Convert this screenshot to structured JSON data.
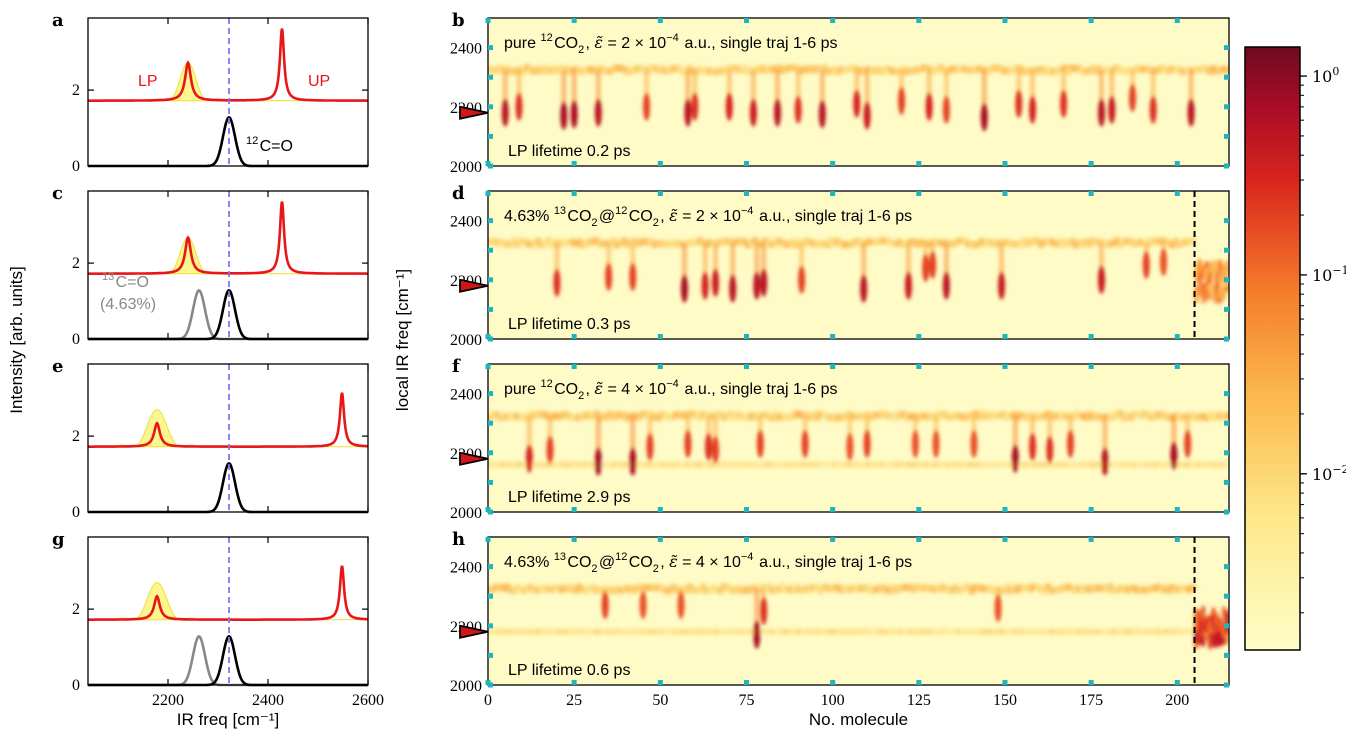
{
  "colors": {
    "lp": "#e8161a",
    "up": "#e8161a",
    "cavity_fill": "#fbf68e",
    "cavity_line": "#f2dd3c",
    "c12": "#000000",
    "c13": "#888888",
    "dashed": "#7b78f2",
    "heatmap_bg": "#fefbc6",
    "tick_cyan": "#1bb6be",
    "marker": "#d11616"
  },
  "chart_data": [
    {
      "panel": "a",
      "type": "line",
      "xlabel": "",
      "ylabel": "",
      "xlim": [
        2040,
        2600
      ],
      "ylim": [
        0,
        3.9
      ],
      "yticks": [
        0,
        2
      ],
      "xticks": [
        2200,
        2400,
        2600
      ],
      "dashed_line_x": 2322,
      "labels": {
        "lp": "LP",
        "up": "UP",
        "c12": "12C=O"
      },
      "lp": {
        "x": 2240,
        "h": 1.0,
        "w": 7
      },
      "up": {
        "x": 2428,
        "h": 1.9,
        "w": 5
      },
      "cavity": {
        "center": 2240,
        "h": 1.0,
        "w": 40
      },
      "baseline": 1.72,
      "c12": {
        "x": 2322,
        "h": 1.28,
        "w": 12
      },
      "c13": null
    },
    {
      "panel": "c",
      "type": "line",
      "xlim": [
        2040,
        2600
      ],
      "ylim": [
        0,
        3.9
      ],
      "yticks": [
        0,
        2
      ],
      "xticks": [
        2200,
        2400,
        2600
      ],
      "dashed_line_x": 2322,
      "labels": {
        "c13": "13C=O",
        "c13_pct": "(4.63%)"
      },
      "lp": {
        "x": 2240,
        "h": 0.95,
        "w": 7
      },
      "up": {
        "x": 2428,
        "h": 1.9,
        "w": 5
      },
      "cavity": {
        "center": 2240,
        "h": 0.95,
        "w": 40
      },
      "baseline": 1.72,
      "c12": {
        "x": 2322,
        "h": 1.28,
        "w": 12
      },
      "c13": {
        "x": 2262,
        "h": 1.28,
        "w": 12
      }
    },
    {
      "panel": "e",
      "type": "line",
      "xlim": [
        2040,
        2600
      ],
      "ylim": [
        0,
        3.9
      ],
      "yticks": [
        0,
        2
      ],
      "xticks": [
        2200,
        2400,
        2600
      ],
      "dashed_line_x": 2322,
      "lp": {
        "x": 2178,
        "h": 0.62,
        "w": 7
      },
      "up": {
        "x": 2548,
        "h": 1.42,
        "w": 5
      },
      "cavity": {
        "center": 2178,
        "h": 0.98,
        "w": 48
      },
      "baseline": 1.72,
      "c12": {
        "x": 2322,
        "h": 1.28,
        "w": 12
      },
      "c13": null
    },
    {
      "panel": "g",
      "type": "line",
      "xlabel": "IR freq [cm⁻¹]",
      "xlim": [
        2040,
        2600
      ],
      "ylim": [
        0,
        3.9
      ],
      "yticks": [
        0,
        2
      ],
      "xticks": [
        2200,
        2400,
        2600
      ],
      "xticklabels": [
        "2200",
        "2400",
        "2600"
      ],
      "dashed_line_x": 2322,
      "lp": {
        "x": 2178,
        "h": 0.62,
        "w": 7
      },
      "up": {
        "x": 2548,
        "h": 1.42,
        "w": 5
      },
      "cavity": {
        "center": 2178,
        "h": 0.98,
        "w": 48
      },
      "baseline": 1.72,
      "c12": {
        "x": 2322,
        "h": 1.28,
        "w": 12
      },
      "c13": {
        "x": 2262,
        "h": 1.28,
        "w": 12
      }
    },
    {
      "panel": "b",
      "type": "heatmap",
      "title_parts": {
        "a": "pure ",
        "sup1": "12",
        "b": "CO",
        "sub1": "2",
        "c": ", ",
        "eps": "ε̃",
        "d": " = 2 × 10",
        "exp": "−4",
        "e": " a.u., single traj 1-6 ps"
      },
      "lifetime": "LP lifetime 0.2 ps",
      "xlim": [
        0,
        215
      ],
      "ylim": [
        2000,
        2500
      ],
      "yticks": [
        2000,
        2200,
        2400
      ],
      "marker_y": 2180,
      "main_band_y": 2325,
      "secondary_band_y": null,
      "dashed_x": null,
      "dips": [
        [
          5,
          2180,
          0.9
        ],
        [
          9,
          2200,
          0.6
        ],
        [
          22,
          2170,
          1.0
        ],
        [
          25,
          2175,
          1.0
        ],
        [
          32,
          2180,
          0.9
        ],
        [
          46,
          2200,
          0.5
        ],
        [
          58,
          2180,
          0.9
        ],
        [
          60,
          2200,
          0.6
        ],
        [
          70,
          2200,
          0.7
        ],
        [
          77,
          2180,
          0.8
        ],
        [
          84,
          2180,
          0.9
        ],
        [
          90,
          2190,
          0.6
        ],
        [
          97,
          2175,
          0.9
        ],
        [
          107,
          2210,
          0.7
        ],
        [
          110,
          2170,
          0.8
        ],
        [
          120,
          2220,
          0.5
        ],
        [
          128,
          2200,
          0.7
        ],
        [
          133,
          2190,
          0.5
        ],
        [
          144,
          2165,
          1.0
        ],
        [
          154,
          2210,
          0.6
        ],
        [
          158,
          2190,
          0.7
        ],
        [
          167,
          2210,
          0.6
        ],
        [
          178,
          2180,
          0.9
        ],
        [
          181,
          2190,
          0.8
        ],
        [
          187,
          2230,
          0.5
        ],
        [
          193,
          2190,
          0.6
        ],
        [
          204,
          2180,
          0.9
        ]
      ]
    },
    {
      "panel": "d",
      "type": "heatmap",
      "title_parts": {
        "a": "4.63% ",
        "sup1": "13",
        "b": "CO",
        "sub1": "2",
        "c": "@",
        "sup2": "12",
        "b2": "CO",
        "sub2": "2",
        "c2": ", ",
        "eps": "ε̃",
        "d": " = 2 × 10",
        "exp": "−4",
        "e": " a.u., single traj 1-6 ps"
      },
      "lifetime": "LP lifetime 0.3 ps",
      "xlim": [
        0,
        215
      ],
      "ylim": [
        2000,
        2500
      ],
      "yticks": [
        2000,
        2200,
        2400
      ],
      "marker_y": 2180,
      "main_band_y": 2325,
      "secondary_band_y": null,
      "dashed_x": 205,
      "dips": [
        [
          20,
          2190,
          0.6
        ],
        [
          35,
          2210,
          0.5
        ],
        [
          42,
          2210,
          0.5
        ],
        [
          57,
          2170,
          1.0
        ],
        [
          63,
          2180,
          0.7
        ],
        [
          66,
          2190,
          0.8
        ],
        [
          71,
          2170,
          0.9
        ],
        [
          78,
          2180,
          0.9
        ],
        [
          80,
          2190,
          0.9
        ],
        [
          91,
          2200,
          0.5
        ],
        [
          109,
          2170,
          0.9
        ],
        [
          122,
          2180,
          0.8
        ],
        [
          127,
          2240,
          0.5
        ],
        [
          129,
          2250,
          0.5
        ],
        [
          133,
          2180,
          0.9
        ],
        [
          149,
          2180,
          0.8
        ],
        [
          178,
          2200,
          0.8
        ],
        [
          191,
          2250,
          0.5
        ],
        [
          196,
          2260,
          0.4
        ]
      ]
    },
    {
      "panel": "f",
      "type": "heatmap",
      "title_parts": {
        "a": "pure ",
        "sup1": "12",
        "b": "CO",
        "sub1": "2",
        "c": ", ",
        "eps": "ε̃",
        "d": " = 4 × 10",
        "exp": "−4",
        "e": " a.u., single traj 1-6 ps"
      },
      "lifetime": "LP lifetime 2.9 ps",
      "xlim": [
        0,
        215
      ],
      "ylim": [
        2000,
        2500
      ],
      "yticks": [
        2000,
        2200,
        2400
      ],
      "marker_y": 2180,
      "main_band_y": 2325,
      "secondary_band_y": 2160,
      "dashed_x": null,
      "dips": [
        [
          12,
          2180,
          0.7
        ],
        [
          18,
          2210,
          0.5
        ],
        [
          32,
          2170,
          1.0
        ],
        [
          42,
          2170,
          1.0
        ],
        [
          47,
          2220,
          0.5
        ],
        [
          58,
          2230,
          0.5
        ],
        [
          64,
          2220,
          0.6
        ],
        [
          66,
          2210,
          0.5
        ],
        [
          79,
          2230,
          0.5
        ],
        [
          92,
          2230,
          0.5
        ],
        [
          105,
          2220,
          0.4
        ],
        [
          110,
          2230,
          0.5
        ],
        [
          124,
          2230,
          0.4
        ],
        [
          130,
          2230,
          0.4
        ],
        [
          141,
          2230,
          0.4
        ],
        [
          153,
          2180,
          1.0
        ],
        [
          158,
          2220,
          0.6
        ],
        [
          163,
          2210,
          0.6
        ],
        [
          169,
          2230,
          0.5
        ],
        [
          179,
          2170,
          0.9
        ],
        [
          199,
          2190,
          1.0
        ],
        [
          203,
          2230,
          0.5
        ]
      ]
    },
    {
      "panel": "h",
      "type": "heatmap",
      "title_parts": {
        "a": "4.63% ",
        "sup1": "13",
        "b": "CO",
        "sub1": "2",
        "c": "@",
        "sup2": "12",
        "b2": "CO",
        "sub2": "2",
        "c2": ", ",
        "eps": "ε̃",
        "d": " = 4 × 10",
        "exp": "−4",
        "e": " a.u., single traj 1-6 ps"
      },
      "lifetime": "LP lifetime 0.6 ps",
      "xlabel": "No. molecule",
      "xlim": [
        0,
        215
      ],
      "ylim": [
        2000,
        2500
      ],
      "yticks": [
        2000,
        2200,
        2400
      ],
      "xticks": [
        0,
        25,
        50,
        75,
        100,
        125,
        150,
        175,
        200
      ],
      "marker_y": 2180,
      "main_band_y": 2325,
      "secondary_band_y": 2180,
      "dashed_x": 205,
      "dips": [
        [
          78,
          2170,
          1.0
        ],
        [
          34,
          2270,
          0.5
        ],
        [
          45,
          2270,
          0.4
        ],
        [
          56,
          2270,
          0.4
        ],
        [
          148,
          2260,
          0.4
        ],
        [
          80,
          2250,
          0.6
        ]
      ]
    },
    {
      "panel": "colorbar",
      "type": "heatmap",
      "scale": "log",
      "range": [
        0.0013,
        1.4
      ],
      "ticklabels": [
        {
          "base": "10",
          "exp": "0",
          "value": 1
        },
        {
          "base": "10",
          "exp": "−1",
          "value": 0.1
        },
        {
          "base": "10",
          "exp": "−2",
          "value": 0.01
        }
      ]
    }
  ],
  "text": {
    "ylabel_left": "Intensity [arb. units]",
    "ylabel_right": "local IR freq [cm⁻¹]",
    "panel_letters": [
      "a",
      "b",
      "c",
      "d",
      "e",
      "f",
      "g",
      "h"
    ],
    "c12_label_a": "12",
    "c12_label_b": "C=O",
    "c13_label_a": "13",
    "c13_label_b": "C=O",
    "c13_pct": "(4.63%)",
    "lp_label": "LP",
    "up_label": "UP",
    "yt_left_0": "0",
    "yt_left_2": "2",
    "yt_right_2000": "2000",
    "yt_right_2200": "2200",
    "yt_right_2400": "2400",
    "left_xlabel": "IR freq [cm⁻¹]",
    "right_xlabel": "No. molecule"
  }
}
